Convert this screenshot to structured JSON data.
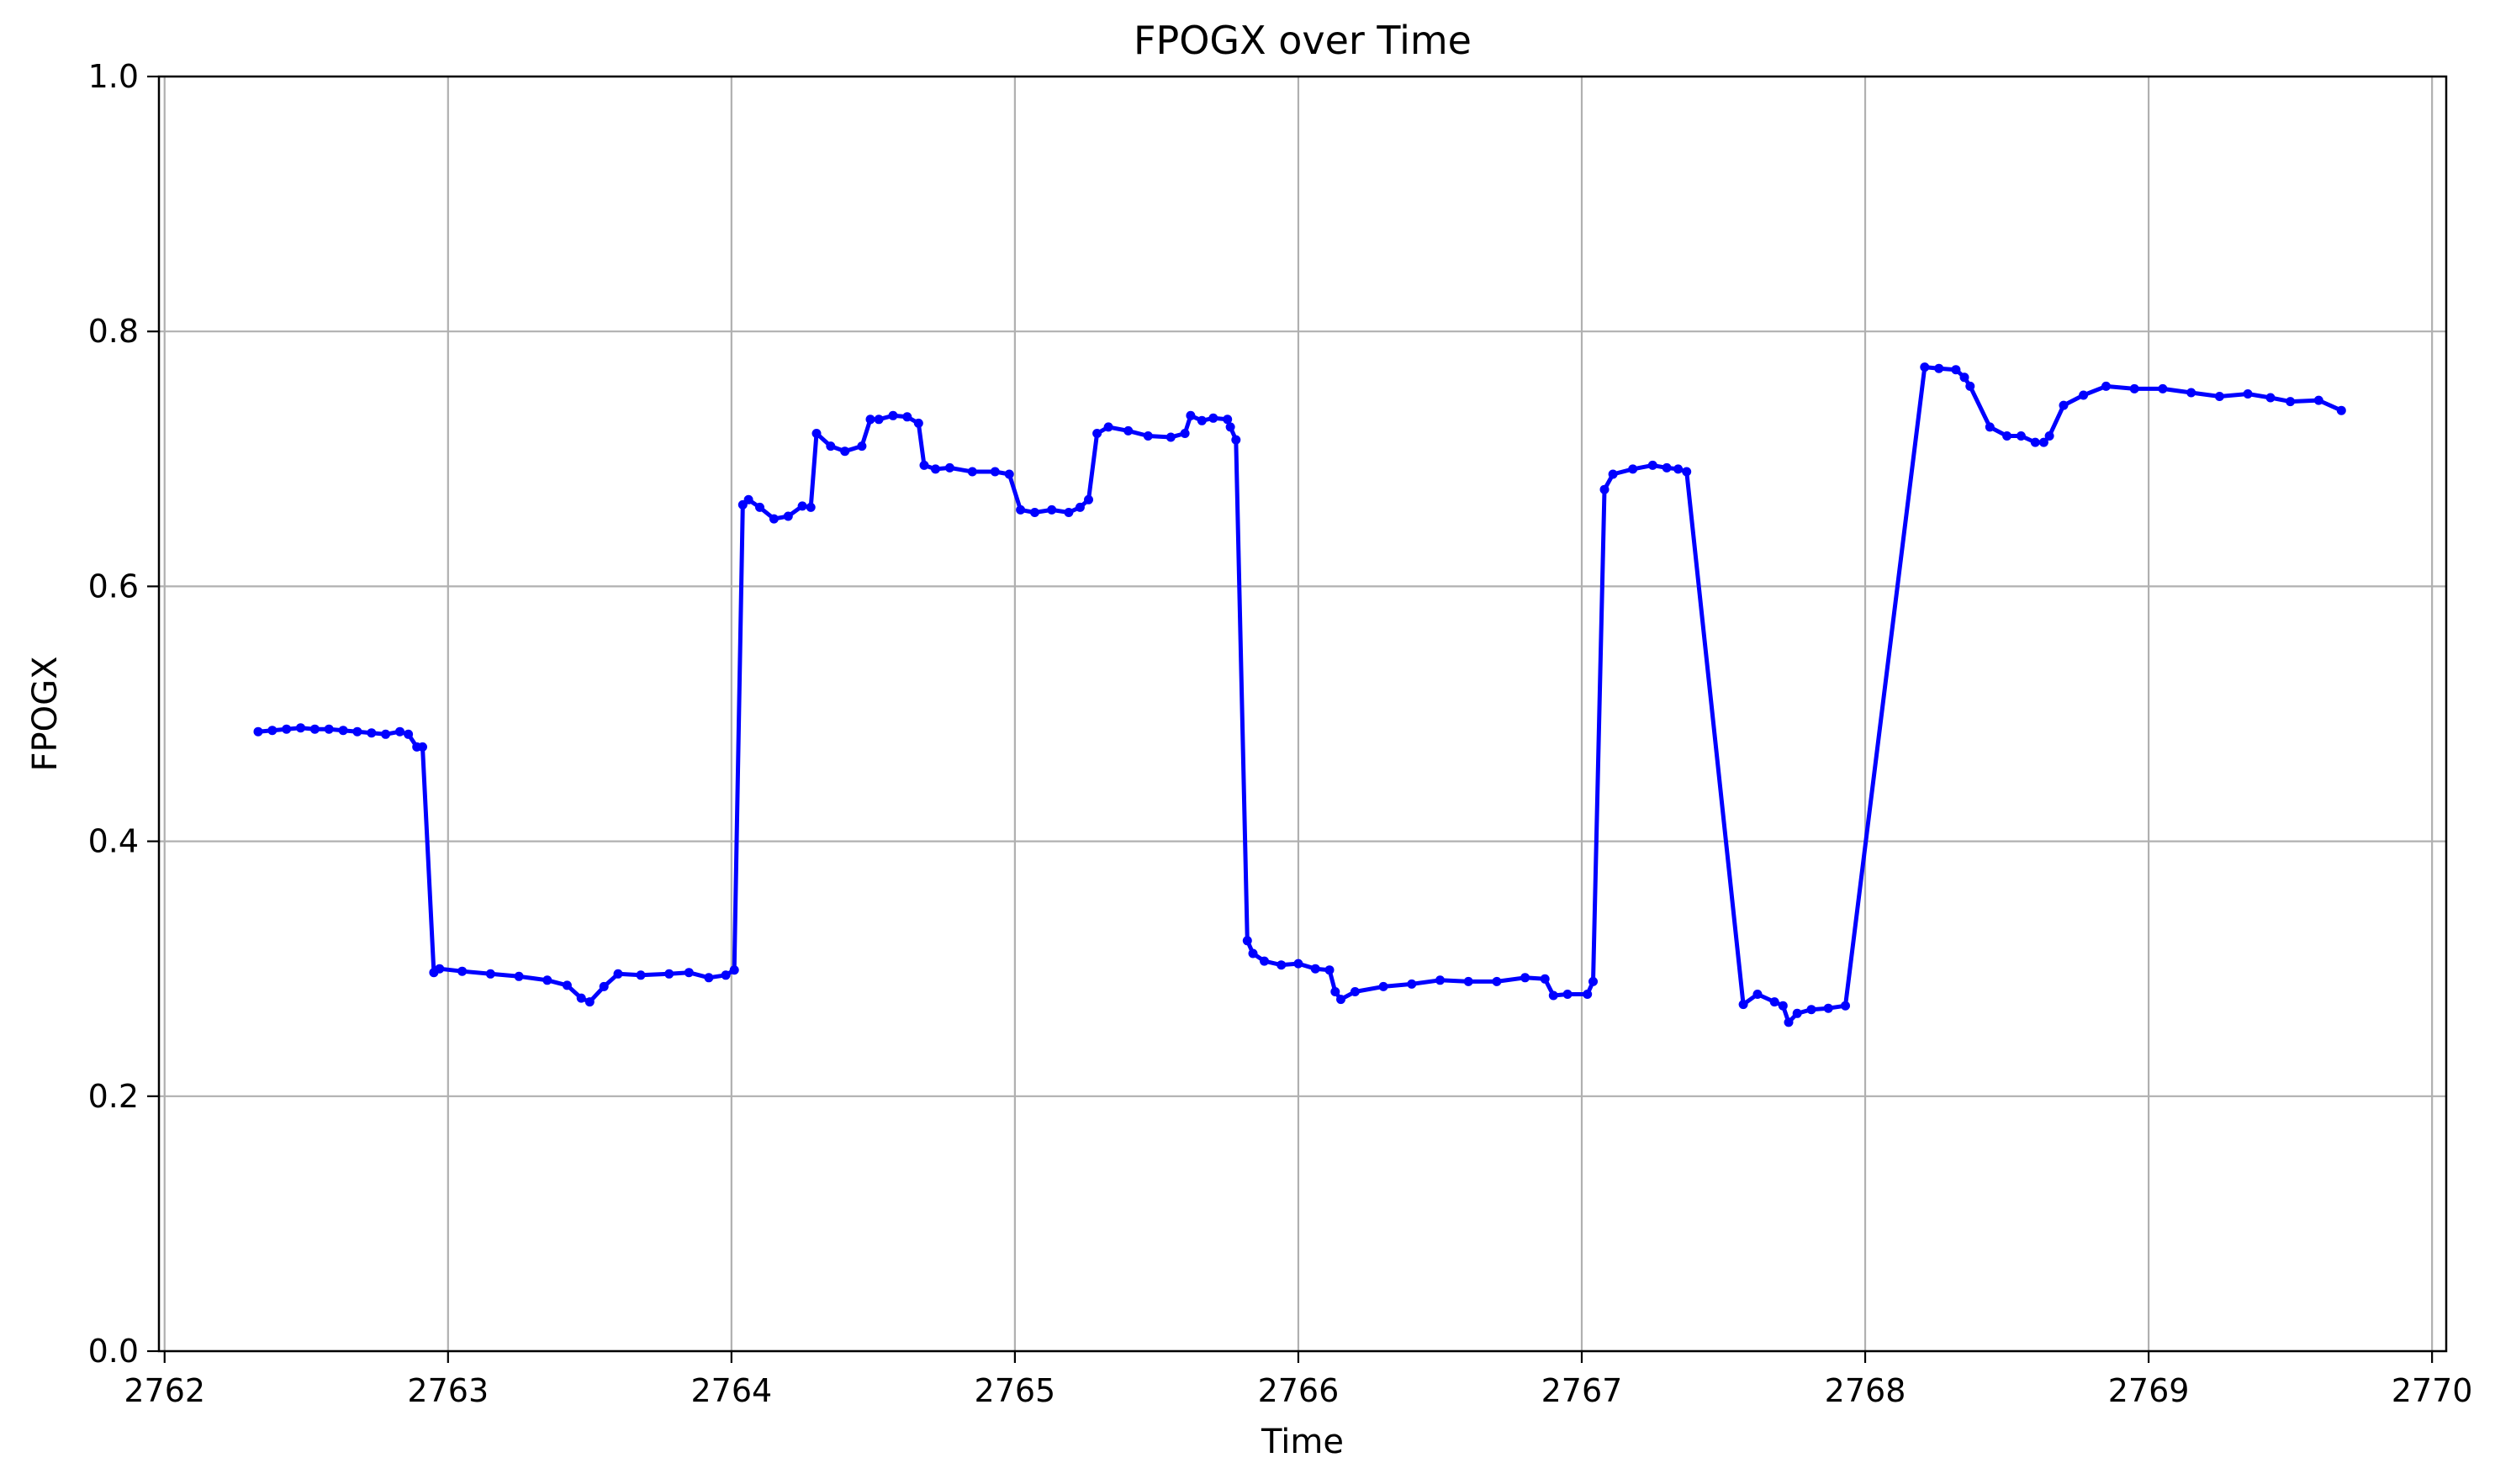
{
  "chart_data": {
    "type": "line",
    "title": "FPOGX over Time",
    "xlabel": "Time",
    "ylabel": "FPOGX",
    "xlim": [
      2761.98,
      2770.05
    ],
    "ylim": [
      0,
      1
    ],
    "xticks": [
      2762,
      2763,
      2764,
      2765,
      2766,
      2767,
      2768,
      2769,
      2770
    ],
    "yticks": [
      0.0,
      0.2,
      0.4,
      0.6,
      0.8,
      1.0
    ],
    "xtick_labels": [
      "2762",
      "2763",
      "2764",
      "2765",
      "2766",
      "2767",
      "2768",
      "2769",
      "2770"
    ],
    "ytick_labels": [
      "0.0",
      "0.2",
      "0.4",
      "0.6",
      "0.8",
      "1.0"
    ],
    "grid": true,
    "colors": {
      "line": "#0000ff",
      "grid": "#b0b0b0",
      "axes": "#000000"
    },
    "series": [
      {
        "name": "",
        "marker": "point",
        "x": [
          2762.33,
          2762.38,
          2762.43,
          2762.48,
          2762.53,
          2762.58,
          2762.63,
          2762.68,
          2762.73,
          2762.78,
          2762.83,
          2762.86,
          2762.89,
          2762.91,
          2762.95,
          2762.97,
          2763.05,
          2763.15,
          2763.25,
          2763.35,
          2763.42,
          2763.47,
          2763.5,
          2763.55,
          2763.6,
          2763.68,
          2763.78,
          2763.85,
          2763.92,
          2763.98,
          2764.01,
          2764.04,
          2764.06,
          2764.1,
          2764.15,
          2764.2,
          2764.25,
          2764.28,
          2764.3,
          2764.35,
          2764.4,
          2764.46,
          2764.49,
          2764.52,
          2764.57,
          2764.62,
          2764.66,
          2764.68,
          2764.72,
          2764.77,
          2764.85,
          2764.93,
          2764.98,
          2765.02,
          2765.07,
          2765.13,
          2765.19,
          2765.23,
          2765.26,
          2765.29,
          2765.33,
          2765.4,
          2765.47,
          2765.55,
          2765.6,
          2765.62,
          2765.66,
          2765.7,
          2765.75,
          2765.76,
          2765.78,
          2765.82,
          2765.84,
          2765.88,
          2765.94,
          2766.0,
          2766.06,
          2766.11,
          2766.13,
          2766.15,
          2766.2,
          2766.3,
          2766.4,
          2766.5,
          2766.6,
          2766.7,
          2766.8,
          2766.87,
          2766.9,
          2766.95,
          2767.02,
          2767.04,
          2767.08,
          2767.11,
          2767.18,
          2767.25,
          2767.3,
          2767.34,
          2767.37,
          2767.57,
          2767.62,
          2767.68,
          2767.71,
          2767.73,
          2767.76,
          2767.81,
          2767.87,
          2767.93,
          2768.21,
          2768.26,
          2768.32,
          2768.35,
          2768.37,
          2768.44,
          2768.5,
          2768.55,
          2768.6,
          2768.63,
          2768.65,
          2768.7,
          2768.77,
          2768.85,
          2768.95,
          2769.05,
          2769.15,
          2769.25,
          2769.35,
          2769.43,
          2769.5,
          2769.6,
          2769.68
        ],
        "y": [
          0.486,
          0.487,
          0.488,
          0.489,
          0.488,
          0.488,
          0.487,
          0.486,
          0.485,
          0.484,
          0.486,
          0.484,
          0.474,
          0.474,
          0.297,
          0.3,
          0.298,
          0.296,
          0.294,
          0.291,
          0.287,
          0.277,
          0.274,
          0.286,
          0.296,
          0.295,
          0.296,
          0.297,
          0.293,
          0.295,
          0.299,
          0.664,
          0.668,
          0.662,
          0.653,
          0.655,
          0.663,
          0.662,
          0.72,
          0.71,
          0.706,
          0.71,
          0.731,
          0.731,
          0.734,
          0.733,
          0.728,
          0.695,
          0.692,
          0.693,
          0.69,
          0.69,
          0.688,
          0.66,
          0.658,
          0.66,
          0.658,
          0.662,
          0.668,
          0.72,
          0.725,
          0.722,
          0.718,
          0.717,
          0.72,
          0.734,
          0.73,
          0.732,
          0.731,
          0.725,
          0.715,
          0.322,
          0.312,
          0.306,
          0.303,
          0.304,
          0.3,
          0.299,
          0.282,
          0.276,
          0.282,
          0.286,
          0.288,
          0.291,
          0.29,
          0.29,
          0.293,
          0.292,
          0.279,
          0.28,
          0.28,
          0.29,
          0.676,
          0.688,
          0.692,
          0.695,
          0.693,
          0.692,
          0.69,
          0.272,
          0.28,
          0.274,
          0.271,
          0.258,
          0.265,
          0.268,
          0.269,
          0.271,
          0.772,
          0.771,
          0.77,
          0.764,
          0.757,
          0.725,
          0.718,
          0.718,
          0.713,
          0.713,
          0.718,
          0.742,
          0.75,
          0.757,
          0.755,
          0.755,
          0.752,
          0.749,
          0.751,
          0.748,
          0.745,
          0.746,
          0.738
        ]
      }
    ]
  }
}
